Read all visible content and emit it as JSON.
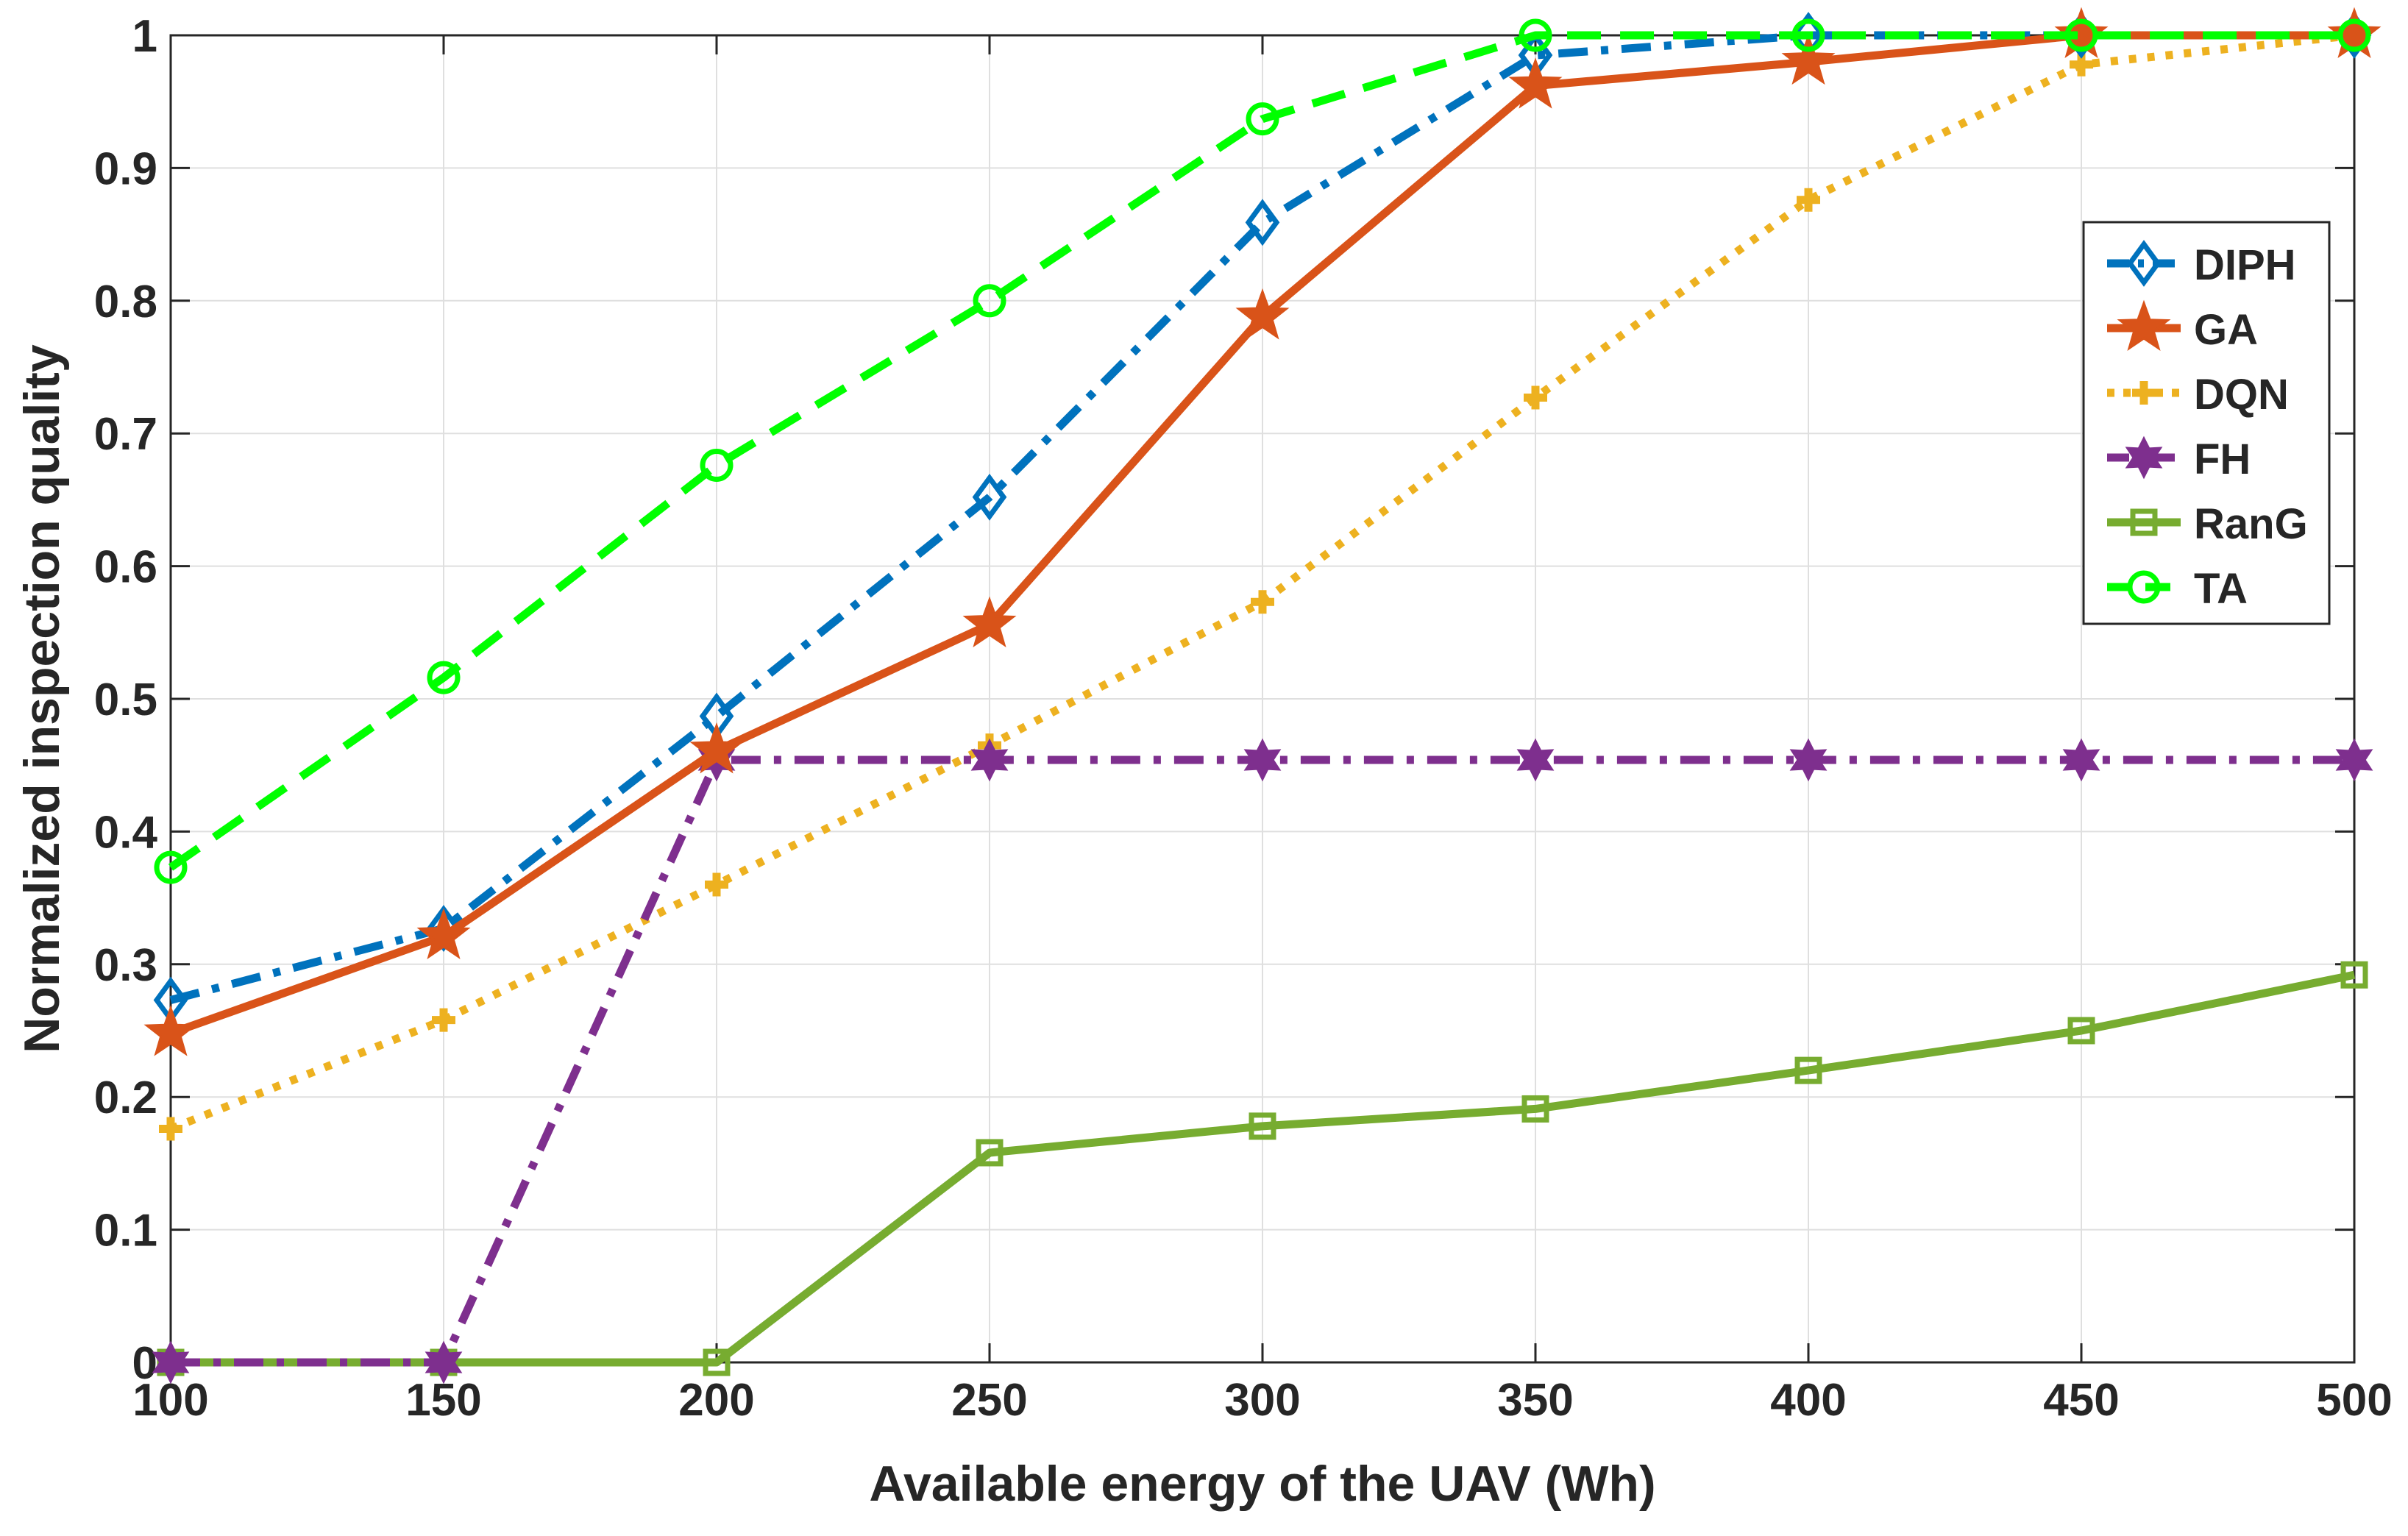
{
  "chart_data": {
    "type": "line",
    "title": "",
    "xlabel": "Available energy of the UAV (Wh)",
    "ylabel": "Normalized inspection quality",
    "x": [
      100,
      150,
      200,
      250,
      300,
      350,
      400,
      450,
      500
    ],
    "xlim": [
      100,
      500
    ],
    "ylim": [
      0,
      1
    ],
    "xticks": [
      100,
      150,
      200,
      250,
      300,
      350,
      400,
      450,
      500
    ],
    "xtick_labels": [
      "100",
      "150",
      "200",
      "250",
      "300",
      "350",
      "400",
      "450",
      "500"
    ],
    "yticks": [
      0,
      0.1,
      0.2,
      0.3,
      0.4,
      0.5,
      0.6,
      0.7,
      0.8,
      0.9,
      1
    ],
    "ytick_labels": [
      "0",
      "0.1",
      "0.2",
      "0.3",
      "0.4",
      "0.5",
      "0.6",
      "0.7",
      "0.8",
      "0.9",
      "1"
    ],
    "grid": true,
    "legend_position": "top-right",
    "series": [
      {
        "name": "DIPH",
        "values": [
          0.273,
          0.327,
          0.487,
          0.652,
          0.859,
          0.985,
          1.0,
          1.0,
          1.0
        ],
        "color": "#0072BD",
        "line_style": "dash-dot",
        "marker": "diamond"
      },
      {
        "name": "GA",
        "values": [
          0.248,
          0.321,
          0.461,
          0.556,
          0.788,
          0.962,
          0.98,
          1.0,
          1.0
        ],
        "color": "#D95319",
        "line_style": "solid",
        "marker": "pentagram"
      },
      {
        "name": "DQN",
        "values": [
          0.176,
          0.258,
          0.36,
          0.465,
          0.573,
          0.727,
          0.876,
          0.978,
          1.0
        ],
        "color": "#EDB120",
        "line_style": "dotted",
        "marker": "plus"
      },
      {
        "name": "FH",
        "values": [
          0.0,
          0.0,
          0.454,
          0.454,
          0.454,
          0.454,
          0.454,
          0.454,
          0.454
        ],
        "color": "#7E2F8E",
        "line_style": "dash-dot",
        "marker": "hexagram"
      },
      {
        "name": "RanG",
        "values": [
          0.0,
          0.0,
          0.0,
          0.158,
          0.178,
          0.191,
          0.22,
          0.25,
          0.292
        ],
        "color": "#77AC30",
        "line_style": "solid",
        "marker": "square"
      },
      {
        "name": "TA",
        "values": [
          0.373,
          0.516,
          0.676,
          0.8,
          0.937,
          1.0,
          1.0,
          1.0,
          1.0
        ],
        "color": "#00FF00",
        "line_style": "dashed",
        "marker": "circle"
      }
    ]
  }
}
